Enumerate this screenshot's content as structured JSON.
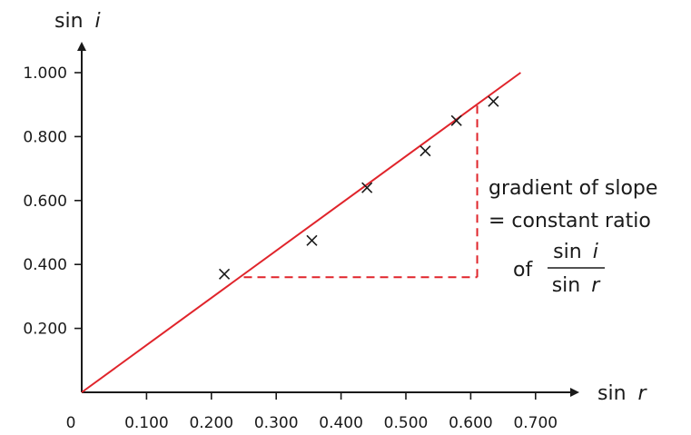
{
  "chart_data": {
    "type": "scatter",
    "xlabel": {
      "fn": "sin",
      "var": "r"
    },
    "ylabel": {
      "fn": "sin",
      "var": "i"
    },
    "xlim": [
      0,
      0.7
    ],
    "ylim": [
      0,
      1.0
    ],
    "x_ticks": [
      0.1,
      0.2,
      0.3,
      0.4,
      0.5,
      0.6,
      0.7
    ],
    "x_tick_labels": [
      "0.100",
      "0.200",
      "0.300",
      "0.400",
      "0.500",
      "0.600",
      "0.700"
    ],
    "y_ticks": [
      0.2,
      0.4,
      0.6,
      0.8,
      1.0
    ],
    "y_tick_labels": [
      "0.200",
      "0.400",
      "0.600",
      "0.800",
      "1.000"
    ],
    "origin_label": "0",
    "points": [
      {
        "x": 0.22,
        "y": 0.37
      },
      {
        "x": 0.355,
        "y": 0.475
      },
      {
        "x": 0.44,
        "y": 0.64
      },
      {
        "x": 0.53,
        "y": 0.755
      },
      {
        "x": 0.578,
        "y": 0.85
      },
      {
        "x": 0.635,
        "y": 0.91
      }
    ],
    "best_fit_line": {
      "from": [
        0,
        0
      ],
      "to": [
        0.677,
        1.0
      ]
    },
    "gradient_triangle": {
      "x1": 0.25,
      "x2": 0.61,
      "y1": 0.36,
      "y2": 0.9
    },
    "annotation": {
      "line1": "gradient of slope",
      "line2": "= constant ratio",
      "line3_prefix": "of",
      "numerator": {
        "fn": "sin",
        "var": "i"
      },
      "denominator": {
        "fn": "sin",
        "var": "r"
      }
    },
    "grid": false,
    "colors": {
      "line": "#e0242b",
      "axis": "#1a1a1a",
      "marker": "#1a1a1a"
    }
  }
}
